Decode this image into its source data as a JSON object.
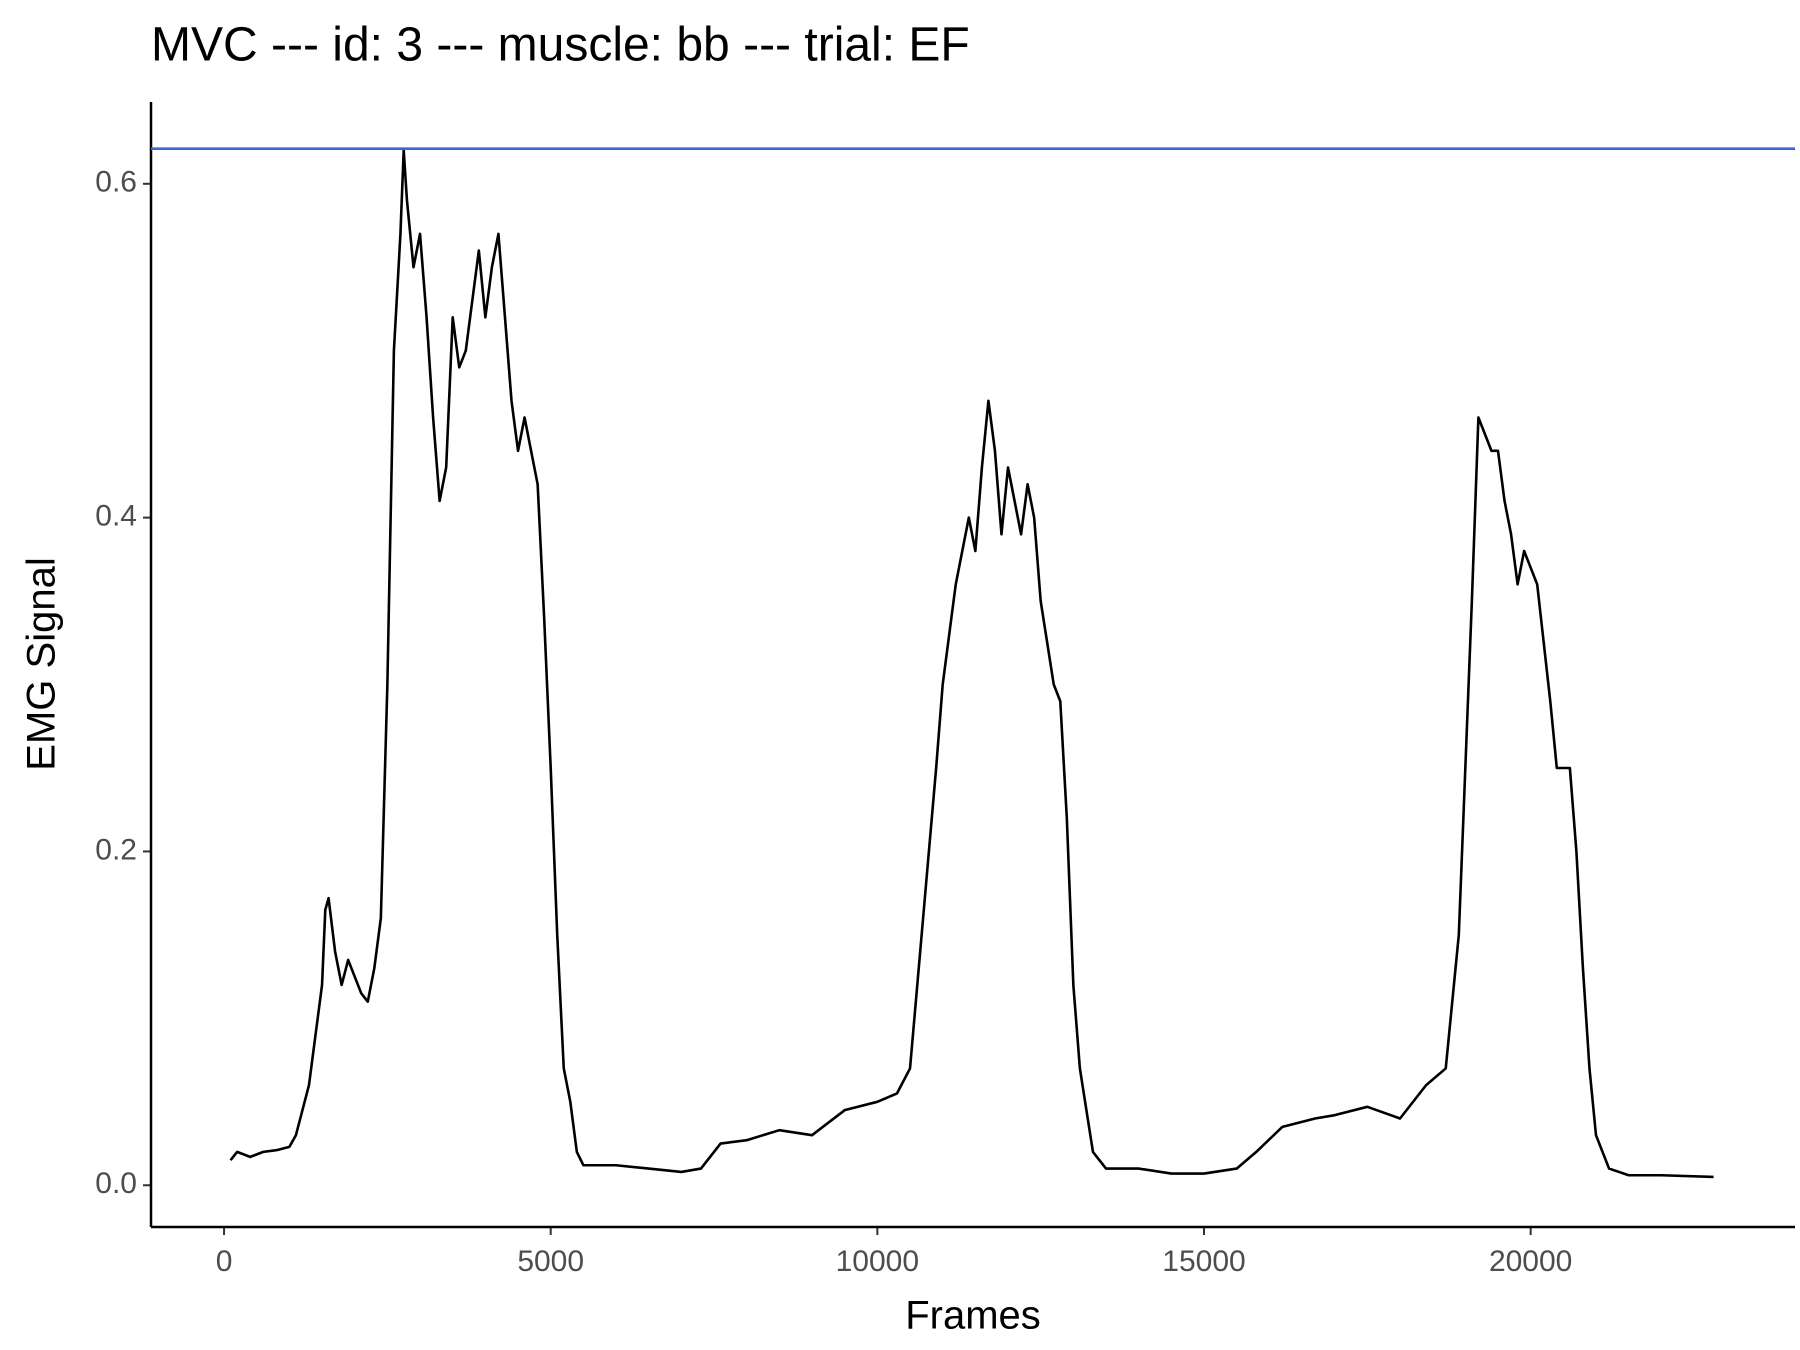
{
  "chart_data": {
    "type": "line",
    "title": "MVC --- id: 3 --- muscle: bb --- trial: EF",
    "x_label": "Frames",
    "y_label": "EMG Signal",
    "xlim": [
      -1118,
      24046
    ],
    "ylim": [
      -0.025,
      0.649
    ],
    "xticks": [
      0,
      5000,
      10000,
      15000,
      20000
    ],
    "yticks": [
      {
        "value": 0,
        "label": "0.0"
      },
      {
        "value": 0.2,
        "label": "0.2"
      },
      {
        "value": 0.4,
        "label": "0.4"
      },
      {
        "value": 0.6,
        "label": "0.6"
      }
    ],
    "grid": false,
    "hline": {
      "value": 0.621,
      "color": "#3a66d6"
    },
    "series": [
      {
        "color": "#000000",
        "x": [
          100,
          200,
          400,
          600,
          800,
          1000,
          1100,
          1200,
          1300,
          1400,
          1500,
          1550,
          1600,
          1700,
          1800,
          1900,
          2000,
          2100,
          2200,
          2300,
          2400,
          2500,
          2600,
          2700,
          2750,
          2800,
          2900,
          3000,
          3100,
          3200,
          3300,
          3400,
          3500,
          3600,
          3700,
          3800,
          3900,
          4000,
          4100,
          4200,
          4300,
          4400,
          4500,
          4600,
          4700,
          4800,
          4900,
          5000,
          5100,
          5200,
          5300,
          5400,
          5500,
          6000,
          6500,
          7000,
          7300,
          7600,
          8000,
          8500,
          9000,
          9500,
          10000,
          10300,
          10500,
          10700,
          10900,
          11000,
          11200,
          11400,
          11500,
          11600,
          11700,
          11800,
          11900,
          12000,
          12100,
          12200,
          12300,
          12400,
          12500,
          12700,
          12800,
          12900,
          13000,
          13100,
          13300,
          13500,
          14000,
          14500,
          15000,
          15500,
          15800,
          16200,
          16700,
          17000,
          17500,
          18000,
          18400,
          18700,
          18900,
          19100,
          19200,
          19300,
          19400,
          19500,
          19600,
          19700,
          19800,
          19900,
          20000,
          20100,
          20300,
          20400,
          20600,
          20700,
          20800,
          20900,
          21000,
          21200,
          21500,
          22000,
          22800
        ],
        "values": [
          0.015,
          0.02,
          0.017,
          0.02,
          0.021,
          0.023,
          0.03,
          0.045,
          0.06,
          0.09,
          0.12,
          0.165,
          0.172,
          0.14,
          0.12,
          0.135,
          0.125,
          0.115,
          0.11,
          0.13,
          0.16,
          0.3,
          0.5,
          0.57,
          0.62,
          0.59,
          0.55,
          0.57,
          0.52,
          0.46,
          0.41,
          0.43,
          0.52,
          0.49,
          0.5,
          0.53,
          0.56,
          0.52,
          0.55,
          0.57,
          0.52,
          0.47,
          0.44,
          0.46,
          0.44,
          0.42,
          0.34,
          0.25,
          0.15,
          0.07,
          0.05,
          0.02,
          0.012,
          0.012,
          0.01,
          0.008,
          0.01,
          0.025,
          0.027,
          0.033,
          0.03,
          0.045,
          0.05,
          0.055,
          0.07,
          0.16,
          0.25,
          0.3,
          0.36,
          0.4,
          0.38,
          0.43,
          0.47,
          0.44,
          0.39,
          0.43,
          0.41,
          0.39,
          0.42,
          0.4,
          0.35,
          0.3,
          0.29,
          0.22,
          0.12,
          0.07,
          0.02,
          0.01,
          0.01,
          0.007,
          0.007,
          0.01,
          0.02,
          0.035,
          0.04,
          0.042,
          0.047,
          0.04,
          0.06,
          0.07,
          0.15,
          0.35,
          0.46,
          0.45,
          0.44,
          0.44,
          0.41,
          0.39,
          0.36,
          0.38,
          0.37,
          0.36,
          0.29,
          0.25,
          0.25,
          0.2,
          0.13,
          0.07,
          0.03,
          0.01,
          0.006,
          0.006,
          0.005
        ]
      }
    ]
  }
}
